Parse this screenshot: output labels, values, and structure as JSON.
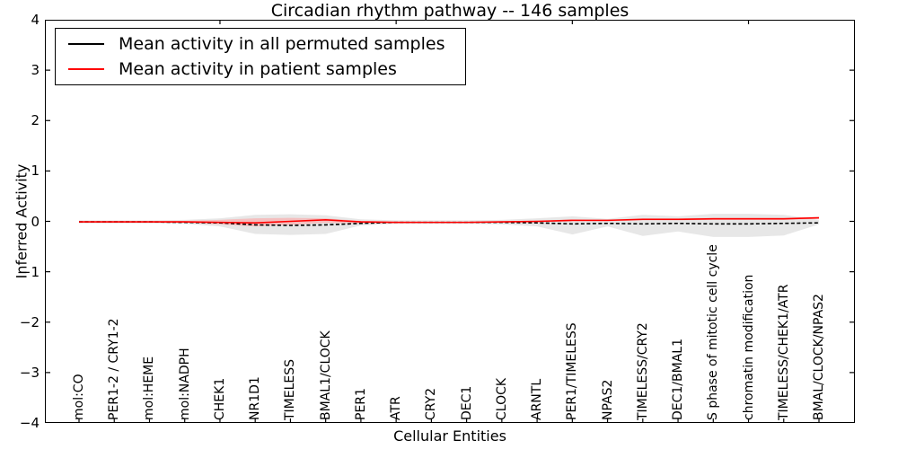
{
  "title": "Circadian rhythm pathway -- 146 samples",
  "axes": {
    "x_label": "Cellular Entities",
    "y_label": "Inferred Activity",
    "y_tick_labels": [
      "4",
      "3",
      "2",
      "1",
      "0",
      "−1",
      "−2",
      "−3",
      "−4"
    ]
  },
  "legend": {
    "items": [
      {
        "label": "Mean activity in all permuted samples",
        "color": "#000000"
      },
      {
        "label": "Mean activity in patient samples",
        "color": "#ff0000"
      }
    ]
  },
  "chart_data": {
    "type": "line",
    "title": "Circadian rhythm pathway -- 146 samples",
    "xlabel": "Cellular Entities",
    "ylabel": "Inferred Activity",
    "ylim": [
      -4,
      4
    ],
    "yticks": [
      4,
      3,
      2,
      1,
      0,
      -1,
      -2,
      -3,
      -4
    ],
    "grid": false,
    "legend_position": "upper-left",
    "categories": [
      "mol:CO",
      "PER1-2 / CRY1-2",
      "mol:HEME",
      "mol:NADPH",
      "CHEK1",
      "NR1D1",
      "TIMELESS",
      "BMAL1/CLOCK",
      "PER1",
      "ATR",
      "CRY2",
      "DEC1",
      "CLOCK",
      "ARNTL",
      "PER1/TIMELESS",
      "NPAS2",
      "TIMELESS/CRY2",
      "DEC1/BMAL1",
      "S phase of mitotic cell cycle",
      "chromatin modification",
      "TIMELESS/CHEK1/ATR",
      "BMAL/CLOCK/NPAS2"
    ],
    "series": [
      {
        "name": "Mean activity in all permuted samples",
        "color": "#000000",
        "style": "dashed",
        "values": [
          -0.01,
          -0.01,
          -0.01,
          -0.02,
          -0.03,
          -0.07,
          -0.08,
          -0.07,
          -0.04,
          -0.02,
          -0.02,
          -0.02,
          -0.02,
          -0.03,
          -0.05,
          -0.04,
          -0.05,
          -0.04,
          -0.05,
          -0.05,
          -0.04,
          -0.03
        ]
      },
      {
        "name": "Mean activity in patient samples",
        "color": "#ff0000",
        "style": "solid",
        "values": [
          -0.01,
          -0.01,
          -0.01,
          -0.01,
          -0.02,
          -0.03,
          0.0,
          0.03,
          -0.01,
          -0.02,
          -0.02,
          -0.02,
          -0.01,
          0.0,
          0.02,
          0.02,
          0.04,
          0.04,
          0.05,
          0.05,
          0.05,
          0.07
        ]
      }
    ],
    "bands": [
      {
        "name": "permuted-activity-range",
        "color": "#e4e4e4",
        "top": [
          0.02,
          0.02,
          0.02,
          0.03,
          0.06,
          0.13,
          0.14,
          0.12,
          0.04,
          0.02,
          0.02,
          0.02,
          0.03,
          0.06,
          0.1,
          0.05,
          0.13,
          0.1,
          0.15,
          0.15,
          0.13,
          0.03
        ],
        "bottom": [
          -0.04,
          -0.04,
          -0.04,
          -0.05,
          -0.1,
          -0.25,
          -0.27,
          -0.25,
          -0.08,
          -0.05,
          -0.05,
          -0.05,
          -0.06,
          -0.1,
          -0.26,
          -0.1,
          -0.29,
          -0.2,
          -0.31,
          -0.31,
          -0.28,
          -0.06
        ]
      },
      {
        "name": "patient-activity-range",
        "color": "#f5baba",
        "top": [
          0.0,
          0.0,
          0.0,
          0.01,
          0.03,
          0.06,
          0.07,
          0.06,
          0.01,
          0.0,
          -0.01,
          -0.01,
          0.0,
          0.01,
          0.04,
          0.03,
          0.06,
          0.06,
          0.07,
          0.07,
          0.07,
          0.09
        ],
        "bottom": [
          -0.02,
          -0.02,
          -0.02,
          -0.03,
          -0.06,
          -0.1,
          -0.07,
          -0.03,
          -0.04,
          -0.04,
          -0.03,
          -0.03,
          -0.03,
          -0.02,
          0.0,
          0.0,
          0.02,
          0.02,
          0.03,
          0.03,
          0.03,
          0.05
        ]
      }
    ]
  }
}
